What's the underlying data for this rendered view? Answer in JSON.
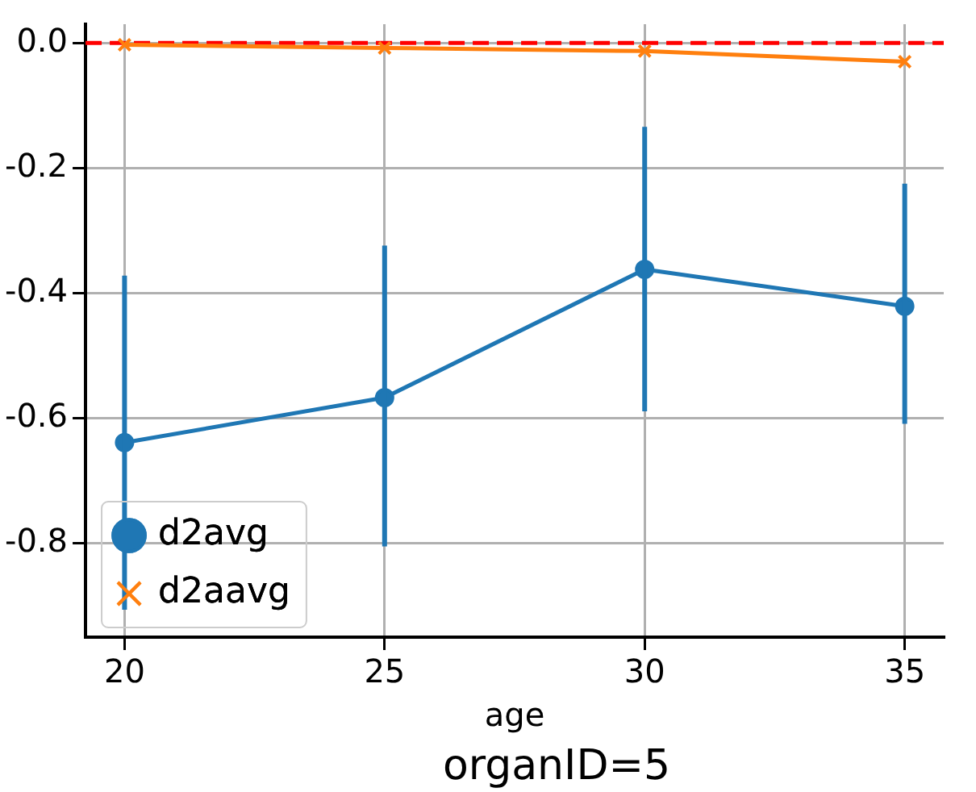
{
  "chart_data": {
    "type": "line",
    "xlabel": "age",
    "annotations": [
      "organID=5"
    ],
    "x": [
      20,
      25,
      30,
      35
    ],
    "series": [
      {
        "name": "d2avg",
        "color": "#1f77b4",
        "marker": "circle",
        "values": [
          -0.639,
          -0.567,
          -0.362,
          -0.421
        ],
        "errors": [
          [
            -0.906,
            -0.372
          ],
          [
            -0.805,
            -0.324
          ],
          [
            -0.589,
            -0.134
          ],
          [
            -0.609,
            -0.225
          ]
        ]
      },
      {
        "name": "d2aavg",
        "color": "#ff7f0e",
        "marker": "cross",
        "values": [
          -0.003,
          -0.008,
          -0.013,
          -0.03
        ]
      }
    ],
    "xlim": [
      19.25,
      35.75
    ],
    "xticks": [
      20,
      25,
      30,
      35
    ],
    "ylim": [
      -0.95,
      0.03
    ],
    "yticks": [
      {
        "value": 0,
        "label": "0.0"
      },
      {
        "value": -0.2,
        "label": "-0.2"
      },
      {
        "value": -0.4,
        "label": "-0.4"
      },
      {
        "value": -0.6,
        "label": "-0.6"
      },
      {
        "value": -0.8,
        "label": "-0.8"
      }
    ],
    "grid": true,
    "legend": "bottom left",
    "ref_lines": [
      {
        "axis": "y",
        "value": 0,
        "color": "#ff0000",
        "line_style": "dashed"
      }
    ]
  }
}
